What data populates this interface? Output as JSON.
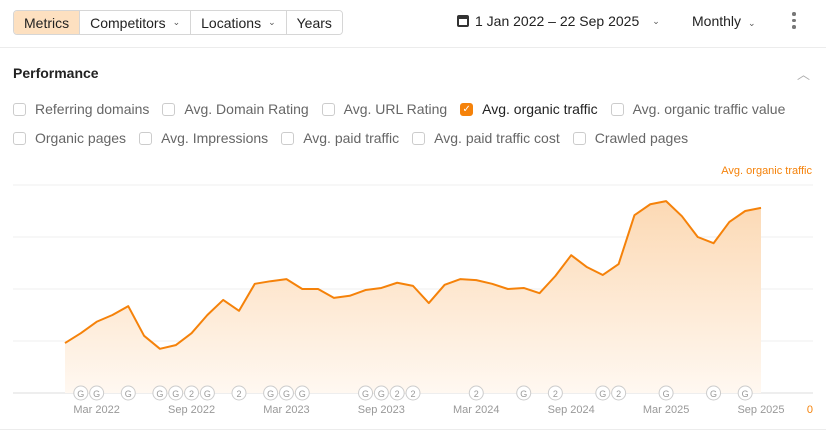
{
  "toolbar": {
    "tabs": [
      {
        "label": "Metrics",
        "active": true
      },
      {
        "label": "Competitors",
        "dropdown": true
      },
      {
        "label": "Locations",
        "dropdown": true
      },
      {
        "label": "Years"
      }
    ],
    "date_range": "1 Jan 2022 – 22 Sep 2025",
    "period": "Monthly"
  },
  "section": {
    "title": "Performance"
  },
  "metrics_row1": [
    {
      "label": "Referring domains",
      "checked": false
    },
    {
      "label": "Avg. Domain Rating",
      "checked": false
    },
    {
      "label": "Avg. URL Rating",
      "checked": false
    },
    {
      "label": "Avg. organic traffic",
      "checked": true
    },
    {
      "label": "Avg. organic traffic value",
      "checked": false
    }
  ],
  "metrics_row2": [
    {
      "label": "Organic pages",
      "checked": false
    },
    {
      "label": "Avg. Impressions",
      "checked": false
    },
    {
      "label": "Avg. paid traffic",
      "checked": false
    },
    {
      "label": "Avg. paid traffic cost",
      "checked": false
    },
    {
      "label": "Crawled pages",
      "checked": false
    }
  ],
  "colors": {
    "accent": "#f5820a",
    "fill": "#fde3c8"
  },
  "chart_data": {
    "type": "area",
    "series_label": "Avg. organic traffic",
    "y_zero_label": "0",
    "y_units": "relative (gridline units, unlabeled axis)",
    "ylim": [
      0,
      4
    ],
    "grid": true,
    "x_start": "Jan 2022",
    "x_step": "month",
    "values": [
      0.96,
      1.15,
      1.37,
      1.5,
      1.67,
      1.1,
      0.85,
      0.92,
      1.15,
      1.5,
      1.79,
      1.58,
      2.1,
      2.15,
      2.19,
      2.0,
      2.0,
      1.83,
      1.87,
      1.98,
      2.02,
      2.12,
      2.06,
      1.73,
      2.08,
      2.19,
      2.17,
      2.1,
      2.0,
      2.02,
      1.92,
      2.25,
      2.65,
      2.42,
      2.27,
      2.48,
      3.42,
      3.63,
      3.69,
      3.4,
      3.0,
      2.88,
      3.29,
      3.5,
      3.56
    ],
    "x_ticks": [
      {
        "index": 2,
        "label": "Mar 2022"
      },
      {
        "index": 8,
        "label": "Sep 2022"
      },
      {
        "index": 14,
        "label": "Mar 2023"
      },
      {
        "index": 20,
        "label": "Sep 2023"
      },
      {
        "index": 26,
        "label": "Mar 2024"
      },
      {
        "index": 32,
        "label": "Sep 2024"
      },
      {
        "index": 38,
        "label": "Mar 2025"
      },
      {
        "index": 44,
        "label": "Sep 2025"
      }
    ],
    "annotations": [
      {
        "index": 1,
        "label": "G"
      },
      {
        "index": 2,
        "label": "G"
      },
      {
        "index": 4,
        "label": "G"
      },
      {
        "index": 6,
        "label": "G"
      },
      {
        "index": 7,
        "label": "G"
      },
      {
        "index": 8,
        "label": "2"
      },
      {
        "index": 9,
        "label": "G"
      },
      {
        "index": 11,
        "label": "2"
      },
      {
        "index": 13,
        "label": "G"
      },
      {
        "index": 14,
        "label": "G"
      },
      {
        "index": 15,
        "label": "G"
      },
      {
        "index": 19,
        "label": "G"
      },
      {
        "index": 20,
        "label": "G"
      },
      {
        "index": 21,
        "label": "2"
      },
      {
        "index": 22,
        "label": "2"
      },
      {
        "index": 26,
        "label": "2"
      },
      {
        "index": 29,
        "label": "G"
      },
      {
        "index": 31,
        "label": "2"
      },
      {
        "index": 34,
        "label": "G"
      },
      {
        "index": 35,
        "label": "2"
      },
      {
        "index": 38,
        "label": "G"
      },
      {
        "index": 41,
        "label": "G"
      },
      {
        "index": 43,
        "label": "G"
      }
    ]
  }
}
